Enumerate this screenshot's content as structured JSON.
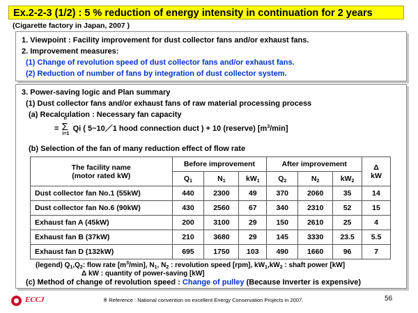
{
  "title": "Ex.2-2-3 (1/2) : 5 % reduction of  energy intensity in continuation for 2 years",
  "subtitle": "(Cigarette factory in Japan, 2007 )",
  "box1": {
    "viewpoint": "1. Viewpoint : Facility improvement for dust collector fans and/or exhaust  fans.",
    "measures_heading": "2. Improvement measures:",
    "measure1": "(1) Change of revolution speed of dust collector fans and/or exhaust  fans.",
    "measure2": "(2) Reduction of  number of  fans by integration of dust collector system."
  },
  "box2": {
    "heading": "3. Power-saving logic and Plan summary",
    "sub1": "(1) Dust collector fans and/or exhaust fans of raw material processing process",
    "recalc": "(a) Recalculation : Necessary fan capacity",
    "formula": {
      "eq": "=",
      "sigma": "Σ",
      "upper": "n",
      "lower": "i=1",
      "qi": "Qi ( 5~10／1 hood connection duct ) + 10 (reserve) [m",
      "exp": "3",
      "tail": "/min]"
    },
    "selection": "(b) Selection of the fan of many reduction effect of flow rate",
    "table": {
      "name_header_1": "The facility name",
      "name_header_2": "(motor rated kW)",
      "before": "Before improvement",
      "after": "After improvement",
      "delta": "Δ",
      "delta_unit": "kW",
      "q1": "Q",
      "q1s": "1",
      "n1": "N",
      "n1s": "1",
      "kw1": "kW",
      "kw1s": "1",
      "q2": "Q",
      "q2s": "2",
      "n2": "N",
      "n2s": "2",
      "kw2": "kW",
      "kw2s": "2",
      "rows": [
        {
          "name": "Dust collector fan No.1 (55kW)",
          "q1": "440",
          "n1": "2300",
          "kw1": "49",
          "q2": "370",
          "n2": "2060",
          "kw2": "35",
          "dkw": "14"
        },
        {
          "name": "Dust collector fan No.6 (90kW)",
          "q1": "430",
          "n1": "2560",
          "kw1": "67",
          "q2": "340",
          "n2": "2310",
          "kw2": "52",
          "dkw": "15"
        },
        {
          "name": "Exhaust fan A (45kW)",
          "q1": "200",
          "n1": "3100",
          "kw1": "29",
          "q2": "150",
          "n2": "2610",
          "kw2": "25",
          "dkw": "4"
        },
        {
          "name": "Exhaust fan B (37kW)",
          "q1": "210",
          "n1": "3680",
          "kw1": "29",
          "q2": "145",
          "n2": "3330",
          "kw2": "23.5",
          "dkw": "5.5"
        },
        {
          "name": "Exhaust fan D (132kW)",
          "q1": "695",
          "n1": "1750",
          "kw1": "103",
          "q2": "490",
          "n2": "1660",
          "kw2": "96",
          "dkw": "7"
        }
      ]
    },
    "legend1": {
      "a": "(legend) Q",
      "s1": "1",
      "b": ",Q",
      "s2": "2",
      "c": ": flow rate [m",
      "e3": "3",
      "d": "/min], N",
      "s3": "1",
      "e": ", N",
      "s4": "2",
      "f": " : revolution speed [rpm], kW",
      "s5": "1",
      "g": ",kW",
      "s6": "2",
      "h": " : shaft power [kW]"
    },
    "legend2": "Δ kW :  quantity of power-saving [kW]",
    "method_a": "(c) Method of change of revolution speed : ",
    "method_b": "Change of pulley",
    "method_c": " (Because Inverter is expensive)"
  },
  "footer": {
    "logo": "ECCJ",
    "reference": "※ Reference : National convention on excellent Energy Conservation Projects in 2007.",
    "page": "56"
  },
  "colors": {
    "title_bg": "#ffff00",
    "accent_blue": "#0033cc",
    "logo_red": "#c8102e"
  }
}
